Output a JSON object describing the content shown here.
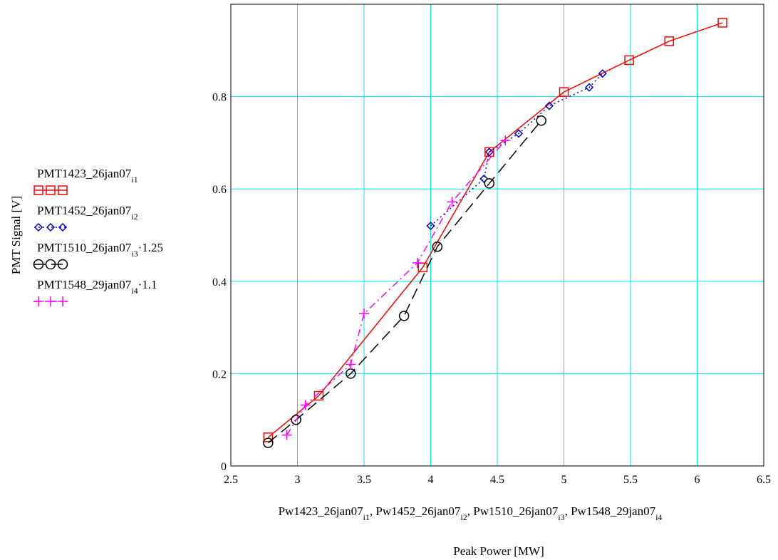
{
  "chart_data": {
    "type": "line",
    "title": "",
    "xlabel": "Peak Power [MW]",
    "xlabel_expr": {
      "parts": [
        {
          "text": "Pw1423_26jan07",
          "sub": "i1",
          "sep": ", "
        },
        {
          "text": "Pw1452_26jan07",
          "sub": "i2",
          "sep": ", "
        },
        {
          "text": "Pw1510_26jan07",
          "sub": "i3",
          "sep": ", "
        },
        {
          "text": "Pw1548_29jan07",
          "sub": "i4",
          "sep": ""
        }
      ]
    },
    "ylabel": "PMT Signal [V]",
    "xlim": [
      2.5,
      6.5
    ],
    "ylim": [
      0,
      1.0
    ],
    "xticks": [
      2.5,
      3,
      3.5,
      4,
      4.5,
      5,
      5.5,
      6,
      6.5
    ],
    "xtick_labels": [
      "2.5",
      "3",
      "3.5",
      "4",
      "4.5",
      "5",
      "5.5",
      "6",
      "6.5"
    ],
    "yticks": [
      0,
      0.2,
      0.4,
      0.6,
      0.8
    ],
    "ytick_labels": [
      "0",
      "0.2",
      "0.4",
      "0.6",
      "0.8"
    ],
    "grid": true,
    "grid_color": "#00e5e5",
    "legend_position": "left",
    "series": [
      {
        "name": "PMT1423_26jan07",
        "sub": "i1",
        "suffix": "",
        "color": "#ff0000",
        "marker": "square",
        "line": "solid",
        "x": [
          2.78,
          3.16,
          3.94,
          4.44,
          5.0,
          5.49,
          5.79,
          6.19
        ],
        "y": [
          0.062,
          0.152,
          0.43,
          0.68,
          0.81,
          0.879,
          0.92,
          0.96
        ]
      },
      {
        "name": "PMT1452_26jan07",
        "sub": "i2",
        "suffix": "",
        "color": "#0000cc",
        "marker": "diamond",
        "line": "dotted",
        "x": [
          4.0,
          4.4,
          4.44,
          4.66,
          4.89,
          5.19,
          5.29
        ],
        "y": [
          0.52,
          0.622,
          0.68,
          0.72,
          0.78,
          0.82,
          0.85
        ]
      },
      {
        "name": "PMT1510_26jan07",
        "sub": "i3",
        "suffix": "·1.25",
        "color": "#000000",
        "marker": "circle",
        "line": "dashed",
        "x": [
          2.78,
          2.99,
          3.4,
          3.8,
          4.05,
          4.44,
          4.83
        ],
        "y": [
          0.05,
          0.1,
          0.2,
          0.325,
          0.475,
          0.612,
          0.748
        ]
      },
      {
        "name": "PMT1548_29jan07",
        "sub": "i4",
        "suffix": "·1.1",
        "color": "#ff00ff",
        "marker": "plus",
        "line": "dashdot",
        "x": [
          2.92,
          3.06,
          3.4,
          3.5,
          3.9,
          4.16,
          4.56
        ],
        "y": [
          0.067,
          0.132,
          0.22,
          0.33,
          0.44,
          0.572,
          0.705
        ]
      }
    ]
  }
}
